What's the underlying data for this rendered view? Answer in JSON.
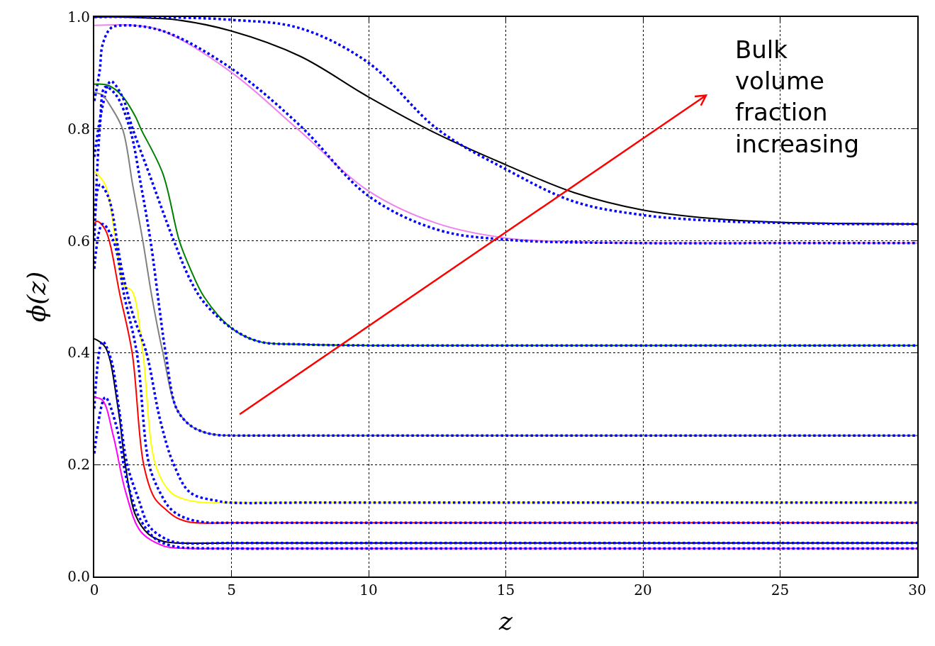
{
  "chart_data": {
    "type": "line",
    "xlabel": "z",
    "ylabel": "ϕ(z)",
    "xlim": [
      0,
      30
    ],
    "ylim": [
      0,
      1
    ],
    "xticks": [
      0,
      5,
      10,
      15,
      20,
      25,
      30
    ],
    "yticks": [
      {
        "value": 0,
        "label": "0.0"
      },
      {
        "value": 0.2,
        "label": "0.2"
      },
      {
        "value": 0.4,
        "label": "0.4"
      },
      {
        "value": 0.6,
        "label": "0.6"
      },
      {
        "value": 0.8,
        "label": "0.8"
      },
      {
        "value": 1,
        "label": "1.0"
      }
    ],
    "grid": true,
    "marker": "none",
    "annotations": [
      "Bulk\nvolume\nfraction\nincreasing"
    ],
    "series": [
      {
        "color": "#000000",
        "line_style": "solid",
        "x": [
          0,
          1,
          2,
          3,
          5,
          7.5,
          10,
          12.5,
          15,
          17.5,
          20,
          22.5,
          25,
          27.5,
          30
        ],
        "values": [
          1,
          1,
          0.998,
          0.995,
          0.975,
          0.93,
          0.857,
          0.791,
          0.736,
          0.686,
          0.655,
          0.64,
          0.633,
          0.631,
          0.63
        ]
      },
      {
        "color": "#0000ff",
        "line_style": "dotted",
        "x": [
          0,
          2,
          5,
          7.5,
          10,
          12.5,
          15,
          17.5,
          20,
          22.5,
          25,
          27.5,
          30
        ],
        "values": [
          1,
          1,
          0.995,
          0.98,
          0.918,
          0.8,
          0.728,
          0.67,
          0.646,
          0.636,
          0.632,
          0.63,
          0.63
        ]
      },
      {
        "color": "#ee82ee",
        "line_style": "solid",
        "x": [
          0,
          1.5,
          2.5,
          5,
          7.5,
          10,
          12.5,
          15,
          17.5,
          20,
          25,
          30
        ],
        "values": [
          0.985,
          0.985,
          0.975,
          0.901,
          0.796,
          0.689,
          0.631,
          0.605,
          0.598,
          0.596,
          0.596,
          0.596
        ]
      },
      {
        "color": "#0000ff",
        "line_style": "dotted",
        "x": [
          0,
          0.2,
          0.3,
          0.6,
          1,
          2.5,
          5,
          7.5,
          10,
          12.5,
          15,
          20,
          25,
          30
        ],
        "values": [
          0.85,
          0.905,
          0.95,
          0.98,
          0.985,
          0.975,
          0.908,
          0.806,
          0.68,
          0.62,
          0.602,
          0.596,
          0.596,
          0.596
        ]
      },
      {
        "color": "#008000",
        "line_style": "solid",
        "x": [
          0,
          0.5,
          1,
          1.5,
          1.7,
          2.5,
          3.1,
          3.5,
          4,
          5,
          6,
          7.5,
          10,
          15,
          20,
          25,
          30
        ],
        "values": [
          0.88,
          0.878,
          0.86,
          0.822,
          0.8,
          0.72,
          0.6,
          0.55,
          0.5,
          0.444,
          0.42,
          0.415,
          0.413,
          0.413,
          0.413,
          0.413,
          0.413
        ]
      },
      {
        "color": "#0000ff",
        "line_style": "dotted",
        "x": [
          0,
          0.3,
          0.6,
          1,
          1.4,
          2,
          2.9,
          3.5,
          4,
          5,
          6,
          7.5,
          10,
          15,
          20,
          25,
          30
        ],
        "values": [
          0.75,
          0.84,
          0.885,
          0.86,
          0.8,
          0.72,
          0.6,
          0.53,
          0.49,
          0.444,
          0.42,
          0.415,
          0.413,
          0.413,
          0.413,
          0.413,
          0.413
        ]
      },
      {
        "color": "#808080",
        "line_style": "solid",
        "x": [
          0,
          0.3,
          0.6,
          1.03,
          1.4,
          1.77,
          2.1,
          2.5,
          3,
          3.5,
          4,
          4.5,
          5,
          7.5,
          10,
          15,
          20,
          25,
          30
        ],
        "values": [
          0.865,
          0.86,
          0.84,
          0.8,
          0.7,
          0.6,
          0.5,
          0.4,
          0.3,
          0.27,
          0.258,
          0.253,
          0.252,
          0.252,
          0.252,
          0.252,
          0.252,
          0.252,
          0.252
        ]
      },
      {
        "color": "#0000ff",
        "line_style": "dotted",
        "x": [
          0,
          0.2,
          0.4,
          0.8,
          1.3,
          1.7,
          2.05,
          2.4,
          2.6,
          3,
          3.5,
          4,
          4.5,
          5,
          7.5,
          10,
          15,
          20,
          25,
          30
        ],
        "values": [
          0.6,
          0.8,
          0.875,
          0.86,
          0.8,
          0.7,
          0.6,
          0.47,
          0.4,
          0.3,
          0.27,
          0.258,
          0.253,
          0.252,
          0.252,
          0.252,
          0.252,
          0.252,
          0.252,
          0.252
        ]
      },
      {
        "color": "#ffff00",
        "line_style": "solid",
        "x": [
          0,
          0.4,
          0.78,
          1.1,
          1.38,
          1.77,
          2.23,
          2.8,
          3.3,
          4,
          5,
          7.5,
          10,
          15,
          20,
          25,
          30
        ],
        "values": [
          0.724,
          0.7,
          0.6,
          0.52,
          0.51,
          0.4,
          0.2,
          0.15,
          0.138,
          0.132,
          0.132,
          0.132,
          0.132,
          0.132,
          0.132,
          0.132,
          0.132
        ]
      },
      {
        "color": "#0000ff",
        "line_style": "dotted",
        "x": [
          0,
          0.2,
          0.5,
          1,
          1.4,
          1.9,
          2.4,
          2.9,
          3.5,
          4.5,
          5,
          7.5,
          10,
          15,
          20,
          25,
          30
        ],
        "values": [
          0.6,
          0.7,
          0.68,
          0.55,
          0.47,
          0.4,
          0.28,
          0.2,
          0.15,
          0.135,
          0.132,
          0.132,
          0.132,
          0.132,
          0.132,
          0.132,
          0.132
        ]
      },
      {
        "color": "#ff0000",
        "line_style": "solid",
        "x": [
          0,
          0.1,
          0.4,
          0.95,
          1.38,
          1.8,
          2.2,
          2.6,
          3,
          3.5,
          5,
          7.5,
          10,
          15,
          20,
          25,
          30
        ],
        "values": [
          0.63,
          0.635,
          0.62,
          0.5,
          0.4,
          0.2,
          0.14,
          0.12,
          0.105,
          0.097,
          0.096,
          0.096,
          0.096,
          0.096,
          0.096,
          0.096,
          0.096
        ]
      },
      {
        "color": "#0000ff",
        "line_style": "dotted",
        "x": [
          0,
          0.3,
          0.7,
          1.1,
          1.55,
          2,
          2.4,
          2.8,
          3.3,
          4,
          5,
          7.5,
          10,
          15,
          20,
          25,
          30
        ],
        "values": [
          0.55,
          0.63,
          0.6,
          0.5,
          0.4,
          0.2,
          0.15,
          0.12,
          0.105,
          0.097,
          0.096,
          0.096,
          0.096,
          0.096,
          0.096,
          0.096,
          0.096
        ]
      },
      {
        "color": "#000000",
        "line_style": "solid",
        "x": [
          0,
          0.4,
          0.87,
          1.13,
          1.5,
          1.97,
          2.5,
          3,
          5,
          7.5,
          10,
          15,
          20,
          25,
          30
        ],
        "values": [
          0.425,
          0.41,
          0.3,
          0.2,
          0.11,
          0.076,
          0.063,
          0.06,
          0.06,
          0.06,
          0.06,
          0.06,
          0.06,
          0.06,
          0.06
        ]
      },
      {
        "color": "#0000ff",
        "line_style": "dotted",
        "x": [
          0,
          0.3,
          0.6,
          0.9,
          1.2,
          1.6,
          2,
          2.5,
          3,
          5,
          7.5,
          10,
          15,
          20,
          25,
          30
        ],
        "values": [
          0.3,
          0.42,
          0.39,
          0.3,
          0.2,
          0.14,
          0.09,
          0.07,
          0.061,
          0.06,
          0.06,
          0.06,
          0.06,
          0.06,
          0.06,
          0.06
        ]
      },
      {
        "color": "#ff00ff",
        "line_style": "solid",
        "x": [
          0,
          0.3,
          0.7,
          1.15,
          1.7,
          2.5,
          3,
          5,
          7.5,
          10,
          15,
          20,
          25,
          30
        ],
        "values": [
          0.32,
          0.315,
          0.25,
          0.15,
          0.08,
          0.055,
          0.051,
          0.05,
          0.05,
          0.05,
          0.05,
          0.05,
          0.05,
          0.05
        ]
      },
      {
        "color": "#0000ff",
        "line_style": "dotted",
        "x": [
          0,
          0.4,
          0.8,
          1.2,
          1.7,
          2.3,
          3,
          3.5,
          5,
          7.5,
          10,
          15,
          20,
          25,
          30
        ],
        "values": [
          0.22,
          0.32,
          0.27,
          0.17,
          0.1,
          0.065,
          0.053,
          0.051,
          0.05,
          0.05,
          0.05,
          0.05,
          0.05,
          0.05,
          0.05
        ]
      }
    ]
  }
}
